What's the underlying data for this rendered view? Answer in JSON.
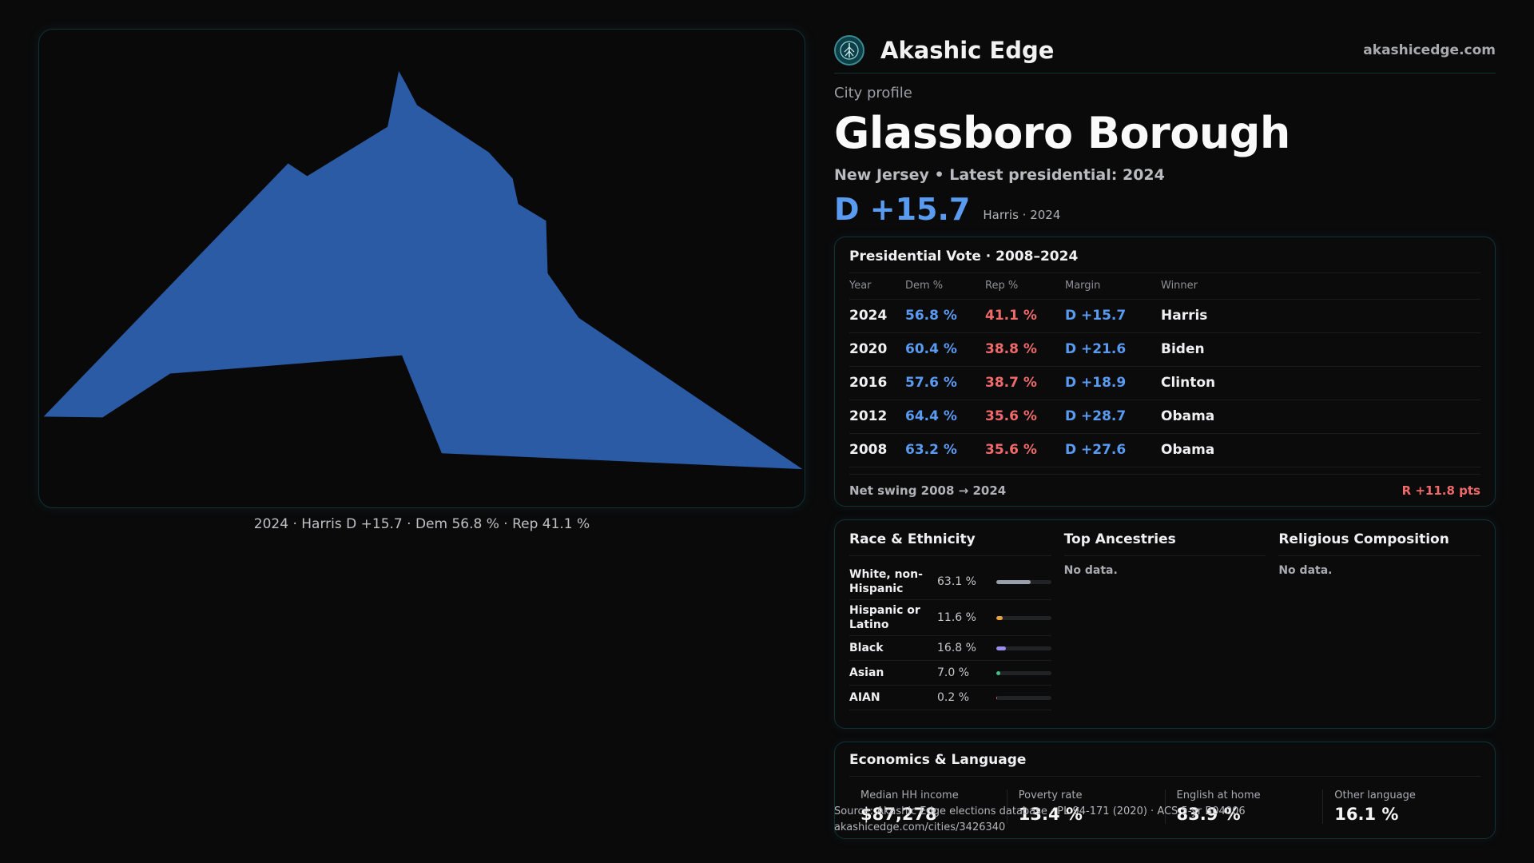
{
  "map": {
    "caption": "2024 · Harris D +15.7 · Dem 56.8 % · Rep 41.1 %",
    "fill_color": "#2b5ba5"
  },
  "brand": {
    "name": "Akashic Edge",
    "url": "akashicedge.com",
    "logo_icon": "tree-of-life-icon"
  },
  "profile": {
    "eyebrow": "City profile",
    "city": "Glassboro Borough",
    "subtitle": "New Jersey • Latest presidential: 2024",
    "margin": "D +15.7",
    "margin_note": "Harris · 2024"
  },
  "vote": {
    "title": "Presidential Vote · 2008–2024",
    "headers": [
      "Year",
      "Dem %",
      "Rep %",
      "Margin",
      "Winner"
    ],
    "rows": [
      {
        "year": "2024",
        "dem": "56.8 %",
        "rep": "41.1 %",
        "margin": "D +15.7",
        "winner": "Harris"
      },
      {
        "year": "2020",
        "dem": "60.4 %",
        "rep": "38.8 %",
        "margin": "D +21.6",
        "winner": "Biden"
      },
      {
        "year": "2016",
        "dem": "57.6 %",
        "rep": "38.7 %",
        "margin": "D +18.9",
        "winner": "Clinton"
      },
      {
        "year": "2012",
        "dem": "64.4 %",
        "rep": "35.6 %",
        "margin": "D +28.7",
        "winner": "Obama"
      },
      {
        "year": "2008",
        "dem": "63.2 %",
        "rep": "35.6 %",
        "margin": "D +27.6",
        "winner": "Obama"
      }
    ],
    "swing_label": "Net swing 2008 → 2024",
    "swing_value": "R +11.8 pts"
  },
  "race": {
    "title": "Race & Ethnicity",
    "items": [
      {
        "label": "White, non-Hispanic",
        "value": "63.1 %",
        "pct": 63.1,
        "color": "#9aa0ab"
      },
      {
        "label": "Hispanic or Latino",
        "value": "11.6 %",
        "pct": 11.6,
        "color": "#e8a23a"
      },
      {
        "label": "Black",
        "value": "16.8 %",
        "pct": 16.8,
        "color": "#9b8cf0"
      },
      {
        "label": "Asian",
        "value": "7.0 %",
        "pct": 7.0,
        "color": "#3fc28a"
      },
      {
        "label": "AIAN",
        "value": "0.2 %",
        "pct": 0.2,
        "color": "#d26a6a"
      }
    ]
  },
  "ancestries": {
    "title": "Top Ancestries",
    "empty": "No data."
  },
  "religion": {
    "title": "Religious Composition",
    "empty": "No data."
  },
  "econ": {
    "title": "Economics & Language",
    "stats": [
      {
        "label": "Median HH income",
        "value": "$87,278"
      },
      {
        "label": "Poverty rate",
        "value": "13.4 %"
      },
      {
        "label": "English at home",
        "value": "83.9 %"
      },
      {
        "label": "Other language",
        "value": "16.1 %"
      }
    ]
  },
  "source": {
    "line1": "Source: Akashic Edge elections database · PL 94-171 (2020) · ACS 5-yr B04006",
    "line2": "akashicedge.com/cities/3426340"
  }
}
